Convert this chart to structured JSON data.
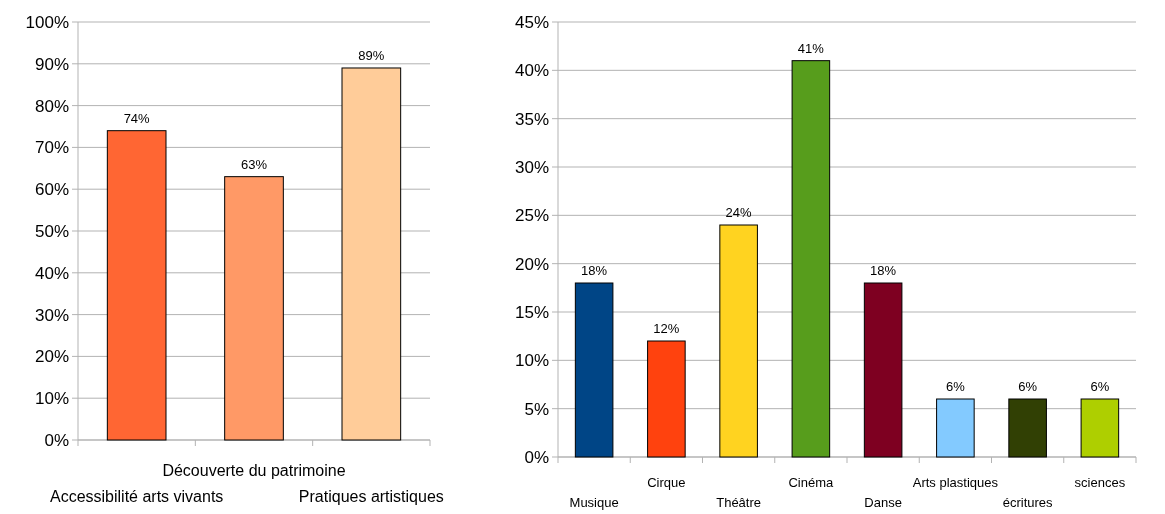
{
  "chart_data": [
    {
      "type": "bar",
      "categories": [
        "Accessibilité arts vivants",
        "Découverte du patrimoine",
        "Pratiques artistiques"
      ],
      "values": [
        74,
        63,
        89
      ],
      "colors": [
        "#ff6633",
        "#ff9966",
        "#ffcc99"
      ],
      "ylim": [
        0,
        100
      ],
      "yticks": [
        {
          "value": 0,
          "label": "0%"
        },
        {
          "value": 10,
          "label": "10%"
        },
        {
          "value": 20,
          "label": "20%"
        },
        {
          "value": 30,
          "label": "30%"
        },
        {
          "value": 40,
          "label": "40%"
        },
        {
          "value": 50,
          "label": "50%"
        },
        {
          "value": 60,
          "label": "60%"
        },
        {
          "value": 70,
          "label": "70%"
        },
        {
          "value": 80,
          "label": "80%"
        },
        {
          "value": 90,
          "label": "90%"
        },
        {
          "value": 100,
          "label": "100%"
        }
      ],
      "grid": "y",
      "value_labels": [
        "74%",
        "63%",
        "89%"
      ]
    },
    {
      "type": "bar",
      "categories": [
        "Musique",
        "Cirque",
        "Théâtre",
        "Cinéma",
        "Danse",
        "Arts plastiques",
        "écritures",
        "sciences"
      ],
      "values": [
        18,
        12,
        24,
        41,
        18,
        6,
        6,
        6
      ],
      "colors": [
        "#004586",
        "#ff420e",
        "#ffd320",
        "#579d1c",
        "#7e0021",
        "#83caff",
        "#314004",
        "#aecf00"
      ],
      "ylim": [
        0,
        45
      ],
      "yticks": [
        {
          "value": 0,
          "label": "0%"
        },
        {
          "value": 5,
          "label": "5%"
        },
        {
          "value": 10,
          "label": "10%"
        },
        {
          "value": 15,
          "label": "15%"
        },
        {
          "value": 20,
          "label": "20%"
        },
        {
          "value": 25,
          "label": "25%"
        },
        {
          "value": 30,
          "label": "30%"
        },
        {
          "value": 35,
          "label": "35%"
        },
        {
          "value": 40,
          "label": "40%"
        },
        {
          "value": 45,
          "label": "45%"
        }
      ],
      "grid": "y",
      "value_labels": [
        "18%",
        "12%",
        "24%",
        "41%",
        "18%",
        "6%",
        "6%",
        "6%"
      ]
    }
  ]
}
